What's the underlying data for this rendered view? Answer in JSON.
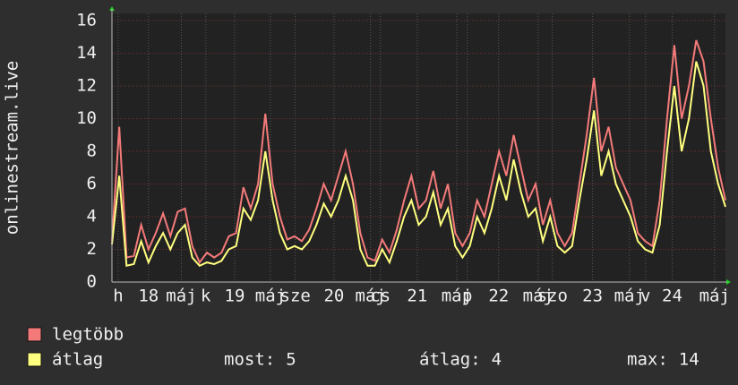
{
  "chart_data": {
    "type": "line",
    "ylabel": "onlinestream.live",
    "xlim": [
      0,
      168
    ],
    "ylim": [
      0,
      16
    ],
    "yticks": [
      0,
      2,
      4,
      6,
      8,
      10,
      12,
      14,
      16
    ],
    "xticks": [
      {
        "value": 1.7,
        "label": "h"
      },
      {
        "value": 10,
        "label": "18"
      },
      {
        "value": 19,
        "label": "máj"
      },
      {
        "value": 25.7,
        "label": "k"
      },
      {
        "value": 33.6,
        "label": "19"
      },
      {
        "value": 43.4,
        "label": "máj"
      },
      {
        "value": 50.2,
        "label": "sze"
      },
      {
        "value": 60.8,
        "label": "20"
      },
      {
        "value": 70.8,
        "label": "máj"
      },
      {
        "value": 73.5,
        "label": "cs"
      },
      {
        "value": 83.6,
        "label": "21"
      },
      {
        "value": 94.4,
        "label": "máj"
      },
      {
        "value": 97.3,
        "label": "p"
      },
      {
        "value": 105.9,
        "label": "22"
      },
      {
        "value": 116.7,
        "label": "máj"
      },
      {
        "value": 120.6,
        "label": "szo"
      },
      {
        "value": 131.6,
        "label": "23"
      },
      {
        "value": 141.7,
        "label": "máj"
      },
      {
        "value": 146.1,
        "label": "v"
      },
      {
        "value": 153.4,
        "label": "24"
      },
      {
        "value": 165,
        "label": "máj"
      }
    ],
    "grid": true,
    "x": [
      0,
      2,
      4,
      6,
      8,
      10,
      12,
      14,
      16,
      18,
      20,
      22,
      24,
      26,
      28,
      30,
      32,
      34,
      36,
      38,
      40,
      42,
      44,
      46,
      48,
      50,
      52,
      54,
      56,
      58,
      60,
      62,
      64,
      66,
      68,
      70,
      72,
      74,
      76,
      78,
      80,
      82,
      84,
      86,
      88,
      90,
      92,
      94,
      96,
      98,
      100,
      102,
      104,
      106,
      108,
      110,
      112,
      114,
      116,
      118,
      120,
      122,
      124,
      126,
      128,
      130,
      132,
      134,
      136,
      138,
      140,
      142,
      144,
      146,
      148,
      150,
      152,
      154,
      156,
      158,
      160,
      162,
      164,
      166,
      168
    ],
    "series": [
      {
        "name": "legtöbb",
        "color": "#f47a7a",
        "values": [
          2.5,
          9.5,
          1.5,
          1.6,
          3.5,
          2.0,
          3.0,
          4.2,
          2.8,
          4.3,
          4.5,
          2.2,
          1.2,
          1.8,
          1.5,
          1.8,
          2.8,
          3.0,
          5.8,
          4.5,
          6.0,
          10.3,
          6.0,
          4.0,
          2.6,
          2.8,
          2.5,
          3.2,
          4.5,
          6.0,
          5.0,
          6.5,
          8.0,
          6.0,
          3.0,
          1.5,
          1.3,
          2.6,
          1.8,
          3.2,
          5.0,
          6.5,
          4.5,
          5.0,
          6.8,
          4.5,
          6.0,
          3.0,
          2.2,
          3.0,
          5.0,
          4.0,
          6.0,
          8.0,
          6.5,
          9.0,
          7.0,
          5.0,
          6.0,
          3.5,
          5.0,
          3.0,
          2.2,
          3.0,
          6.0,
          9.0,
          12.5,
          8.0,
          9.5,
          7.0,
          6.0,
          5.0,
          3.0,
          2.5,
          2.2,
          5.0,
          10.0,
          14.5,
          10.0,
          12.0,
          14.8,
          13.5,
          10.0,
          7.0,
          5.0
        ]
      },
      {
        "name": "átlag",
        "color": "#ffff80",
        "values": [
          2.3,
          6.5,
          1.0,
          1.1,
          2.5,
          1.2,
          2.2,
          3.0,
          2.0,
          3.0,
          3.5,
          1.5,
          1.0,
          1.2,
          1.1,
          1.3,
          2.0,
          2.2,
          4.5,
          3.8,
          5.0,
          8.0,
          5.0,
          3.0,
          2.0,
          2.2,
          2.0,
          2.5,
          3.5,
          4.8,
          4.0,
          5.0,
          6.5,
          5.0,
          2.0,
          1.0,
          1.0,
          2.0,
          1.2,
          2.5,
          4.0,
          5.0,
          3.5,
          4.0,
          5.5,
          3.5,
          4.5,
          2.2,
          1.5,
          2.2,
          4.0,
          3.0,
          4.5,
          6.5,
          5.0,
          7.5,
          5.5,
          4.0,
          4.5,
          2.5,
          4.0,
          2.2,
          1.8,
          2.2,
          5.0,
          7.5,
          10.5,
          6.5,
          8.0,
          6.0,
          5.0,
          4.0,
          2.5,
          2.0,
          1.8,
          3.5,
          8.0,
          12.0,
          8.0,
          10.0,
          13.5,
          12.0,
          8.0,
          6.0,
          4.6
        ]
      }
    ],
    "stats": [
      {
        "label": "most:",
        "value": 5
      },
      {
        "label": "átlag:",
        "value": 4
      },
      {
        "label": "max:",
        "value": 14
      }
    ]
  }
}
